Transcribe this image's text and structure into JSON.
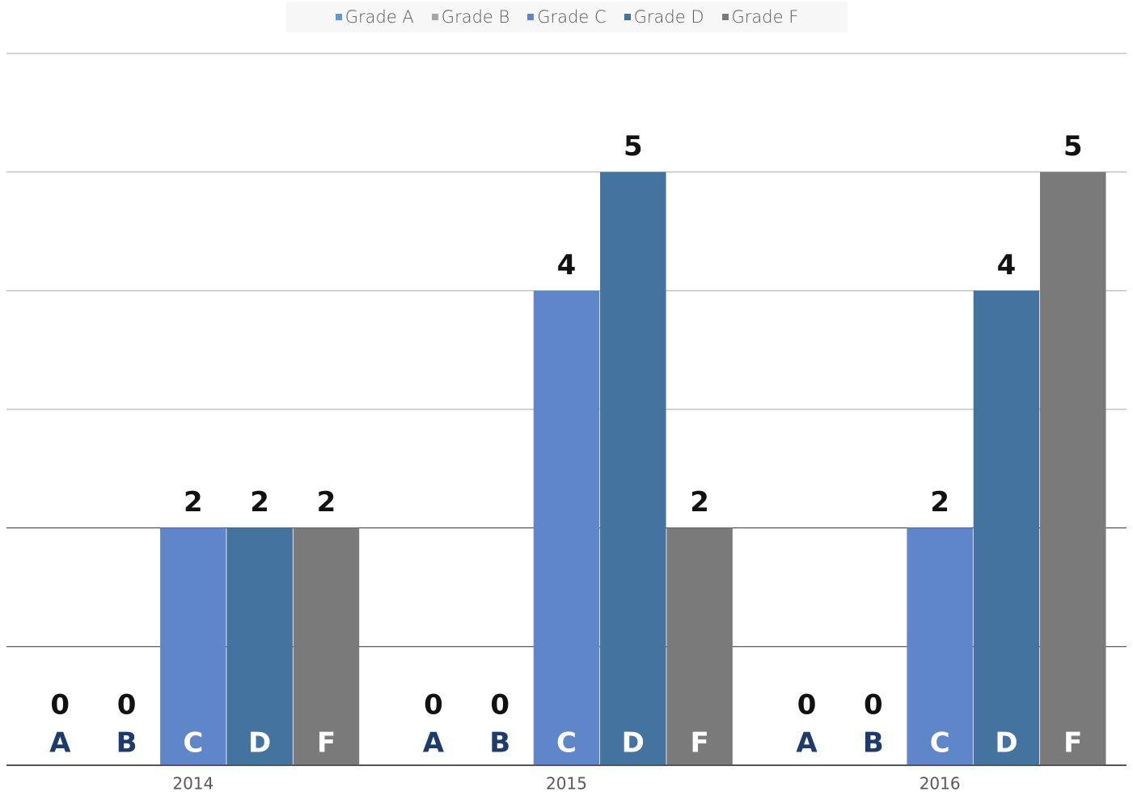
{
  "chart_data": {
    "type": "bar",
    "categories": [
      "2014",
      "2015",
      "2016"
    ],
    "series": [
      {
        "name": "Grade A",
        "color": "#5b9bd5",
        "bar_label": "A",
        "values": [
          0,
          0,
          0
        ]
      },
      {
        "name": "Grade B",
        "color": "#a5a5a5",
        "bar_label": "B",
        "values": [
          0,
          0,
          0
        ]
      },
      {
        "name": "Grade C",
        "color": "#5f86c9",
        "bar_label": "C",
        "values": [
          2,
          4,
          2
        ]
      },
      {
        "name": "Grade D",
        "color": "#44739f",
        "bar_label": "D",
        "values": [
          2,
          5,
          4
        ]
      },
      {
        "name": "Grade F",
        "color": "#7a7a7a",
        "bar_label": "F",
        "values": [
          2,
          2,
          5
        ]
      }
    ],
    "ylim": [
      0,
      6
    ],
    "yticks": [
      0,
      1,
      2,
      3,
      4,
      5,
      6
    ],
    "grid": true,
    "legend": "top"
  }
}
